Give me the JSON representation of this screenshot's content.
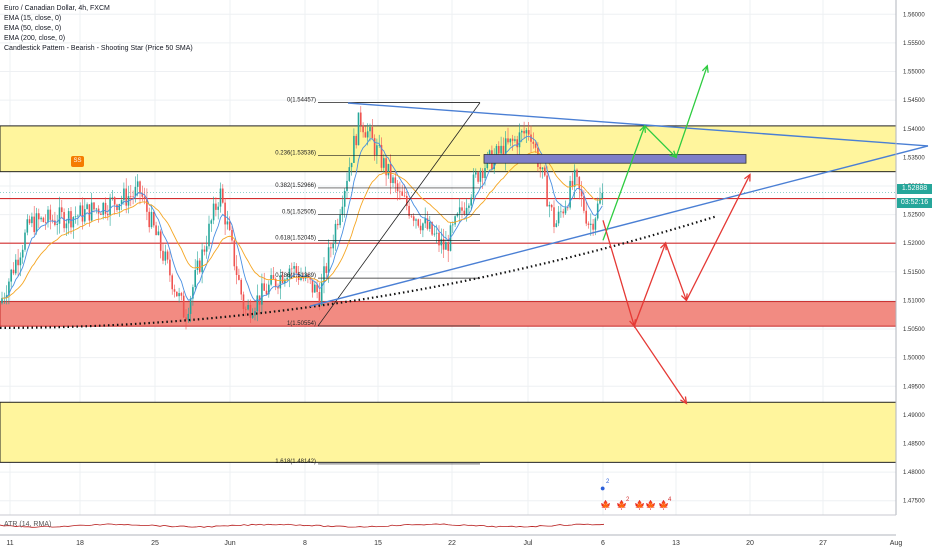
{
  "header": {
    "symbol_title": "Euro / Canadian Dollar, 4h, FXCM",
    "indicators": [
      "EMA (15, close, 0)",
      "EMA (50, close, 0)",
      "EMA (200, close, 0)",
      "Candlestick Pattern - Bearish - Shooting Star (Price 50 SMA)"
    ]
  },
  "price_tags": {
    "last_price": "1.52888",
    "countdown": "03:52:16"
  },
  "badge_label": "SS",
  "atr_label": "ATR (14, RMA)",
  "event_icons": {
    "top_count": "2",
    "group1_count": "2",
    "group2_count": "4"
  },
  "colors": {
    "yellow_zone": "#fff59d",
    "red_zone": "#f28b82",
    "trendline": "#4a7fd4",
    "bullish_path": "#2ecc40",
    "bearish_path": "#e53935",
    "ema_fast": "#4a90e2",
    "ema_slow": "#f5a623",
    "up_candle": "#26a69a",
    "down_candle": "#ef5350",
    "price_tag": "#26a69a"
  },
  "chart_data": {
    "type": "candlestick",
    "ylim": [
      1.4725,
      1.5625
    ],
    "y_ticks": [
      "1.56000",
      "1.55500",
      "1.55000",
      "1.54500",
      "1.54000",
      "1.53500",
      "1.53000",
      "1.52500",
      "1.52000",
      "1.51500",
      "1.51000",
      "1.50500",
      "1.50000",
      "1.49500",
      "1.49000",
      "1.48500",
      "1.48000",
      "1.47500"
    ],
    "x_ticks": [
      "11",
      "18",
      "25",
      "Jun",
      "8",
      "15",
      "22",
      "Jul",
      "6",
      "13",
      "20",
      "27",
      "Aug"
    ],
    "fib_levels": [
      {
        "label": "0(1.54457)",
        "price": 1.54457
      },
      {
        "label": "0.236(1.53536)",
        "price": 1.53536
      },
      {
        "label": "0.382(1.52966)",
        "price": 1.52966
      },
      {
        "label": "0.5(1.52505)",
        "price": 1.52505
      },
      {
        "label": "0.618(1.52045)",
        "price": 1.52045
      },
      {
        "label": "0.786(1.51389)",
        "price": 1.51389
      },
      {
        "label": "1(1.50554)",
        "price": 1.50554
      },
      {
        "label": "1.618(1.48142)",
        "price": 1.48142
      }
    ],
    "zones": [
      {
        "kind": "yellow",
        "from": 1.5405,
        "to": 1.5325
      },
      {
        "kind": "red",
        "from": 1.5098,
        "to": 1.5055
      },
      {
        "kind": "yellow",
        "from": 1.4922,
        "to": 1.4817
      }
    ],
    "horizontal_lines": [
      1.5278,
      1.52
    ],
    "scenarios": {
      "bullish": [
        [
          "6",
          1.5205
        ],
        [
          "10",
          1.5405
        ],
        [
          "13",
          1.535
        ],
        [
          "16",
          1.551
        ]
      ],
      "bearish": [
        [
          "6",
          1.524
        ],
        [
          "9",
          1.5055
        ],
        [
          "12",
          1.52
        ],
        [
          "14",
          1.51
        ],
        [
          "20",
          1.532
        ]
      ],
      "bearish_alt": [
        [
          "9",
          1.5055
        ],
        [
          "14",
          1.492
        ]
      ]
    }
  }
}
